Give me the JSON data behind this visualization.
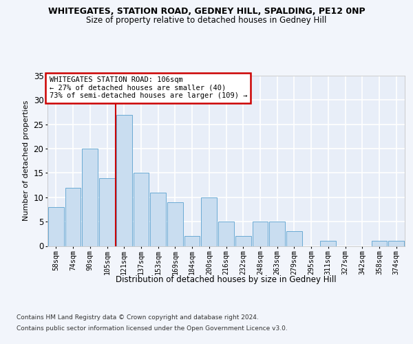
{
  "title1": "WHITEGATES, STATION ROAD, GEDNEY HILL, SPALDING, PE12 0NP",
  "title2": "Size of property relative to detached houses in Gedney Hill",
  "xlabel": "Distribution of detached houses by size in Gedney Hill",
  "ylabel": "Number of detached properties",
  "categories": [
    "58sqm",
    "74sqm",
    "90sqm",
    "105sqm",
    "121sqm",
    "137sqm",
    "153sqm",
    "169sqm",
    "184sqm",
    "200sqm",
    "216sqm",
    "232sqm",
    "248sqm",
    "263sqm",
    "279sqm",
    "295sqm",
    "311sqm",
    "327sqm",
    "342sqm",
    "358sqm",
    "374sqm"
  ],
  "values": [
    8,
    12,
    20,
    14,
    27,
    15,
    11,
    9,
    2,
    10,
    5,
    2,
    5,
    5,
    3,
    0,
    1,
    0,
    0,
    1,
    1
  ],
  "bar_color": "#c9ddf0",
  "bar_edge_color": "#6aaad4",
  "background_color": "#e8eef8",
  "grid_color": "#ffffff",
  "annotation_box_text": "WHITEGATES STATION ROAD: 106sqm\n← 27% of detached houses are smaller (40)\n73% of semi-detached houses are larger (109) →",
  "annotation_box_color": "#ffffff",
  "annotation_box_edge": "#cc0000",
  "red_line_x": 3.5,
  "ylim": [
    0,
    35
  ],
  "yticks": [
    0,
    5,
    10,
    15,
    20,
    25,
    30,
    35
  ],
  "footer1": "Contains HM Land Registry data © Crown copyright and database right 2024.",
  "footer2": "Contains public sector information licensed under the Open Government Licence v3.0."
}
